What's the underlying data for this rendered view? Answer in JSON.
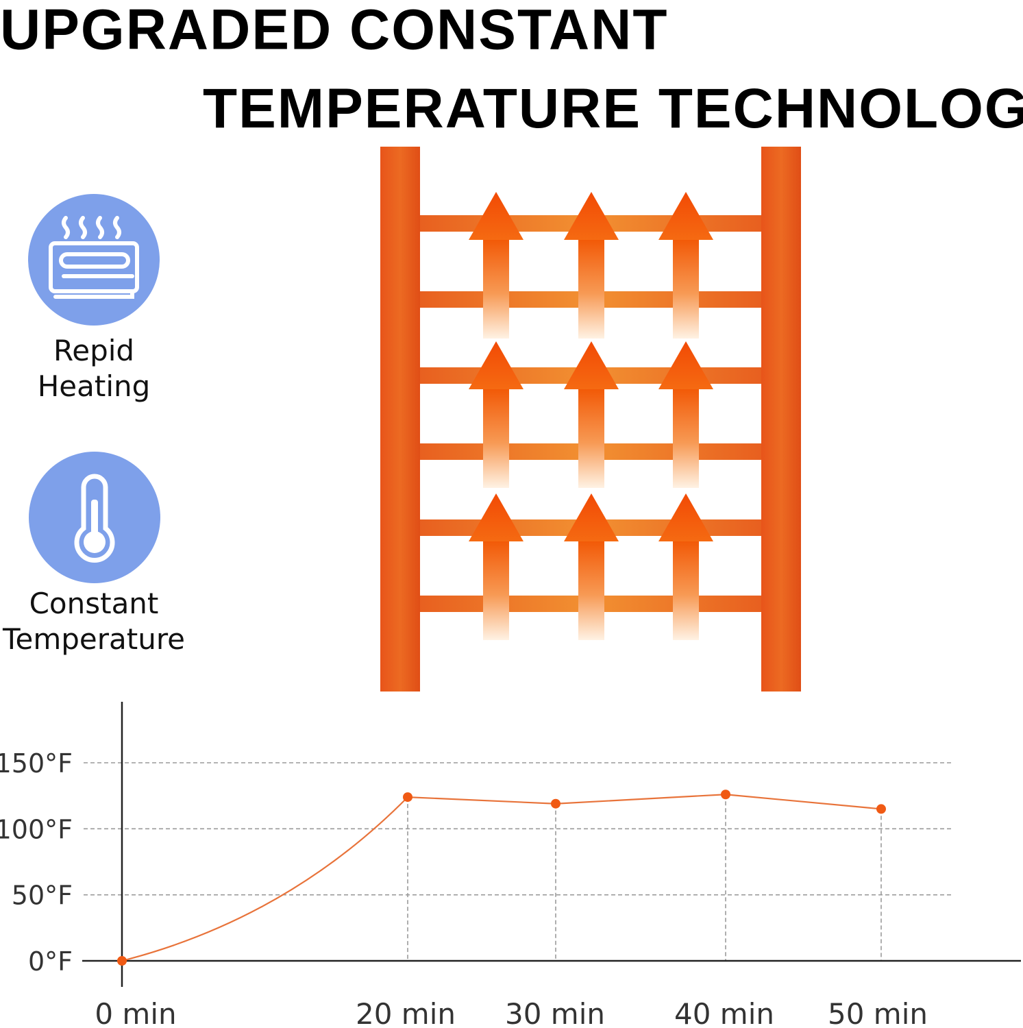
{
  "headline": {
    "line1": "UPGRADED CONSTANT",
    "line2": "TEMPERATURE TECHNOLOGY"
  },
  "features": [
    {
      "icon": "heating-element-icon",
      "label_line1": "Repid",
      "label_line2": "Heating"
    },
    {
      "icon": "thermometer-icon",
      "label_line1": "Constant",
      "label_line2": "Temperature"
    }
  ],
  "colors": {
    "icon_circle": "#7ea0ea",
    "rack_orange": "#e85a1e",
    "arrow_orange": "#f25c05",
    "chart_line": "#e8733a",
    "chart_point": "#f05a14"
  },
  "illustration": {
    "name": "heated-towel-rack",
    "rails": 6,
    "arrow_rows": 3,
    "arrows_per_row": 3
  },
  "chart_data": {
    "type": "line",
    "title": "",
    "xlabel": "",
    "ylabel": "",
    "x_tick_labels": [
      "0 min",
      "20 min",
      "30 min",
      "40 min",
      "50 min"
    ],
    "y_tick_labels": [
      "0°F",
      "50°F",
      "100°F",
      "150°F"
    ],
    "y_ticks": [
      0,
      50,
      100,
      150
    ],
    "ylim": [
      0,
      150
    ],
    "grid": "dashed horizontal at each y tick, dashed vertical drop lines at marked points",
    "series": [
      {
        "x": [
          0,
          20,
          30,
          40,
          50
        ],
        "y": [
          0,
          124,
          119,
          126,
          115
        ]
      }
    ]
  }
}
